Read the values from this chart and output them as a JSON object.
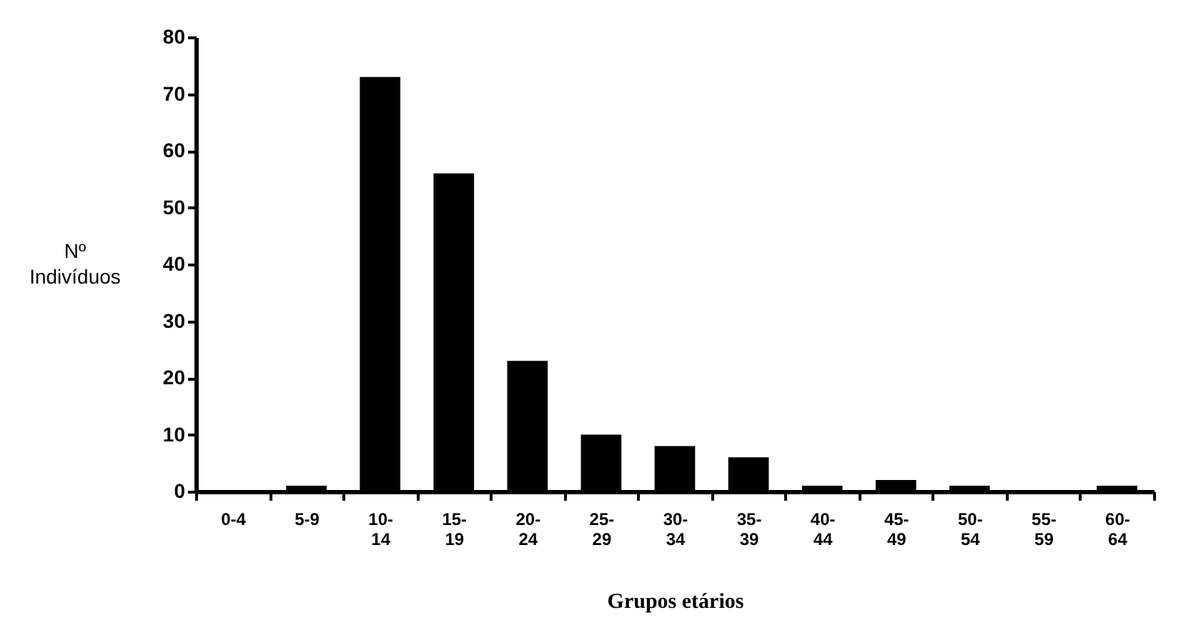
{
  "chart_data": {
    "type": "bar",
    "xlabel": "Grupos etários",
    "ylabel": "Nº Indivíduos",
    "categories": [
      "0-4",
      "5-9",
      "10-14",
      "15-19",
      "20-24",
      "25-29",
      "30-34",
      "35-39",
      "40-44",
      "45-49",
      "50-54",
      "55-59",
      "60-64"
    ],
    "values": [
      0,
      1,
      73,
      56,
      23,
      10,
      8,
      6,
      1,
      2,
      1,
      0,
      1
    ],
    "color": "#000000",
    "ylim": [
      0,
      80
    ],
    "yticks": [
      0,
      10,
      20,
      30,
      40,
      50,
      60,
      70,
      80
    ],
    "grid": false
  }
}
